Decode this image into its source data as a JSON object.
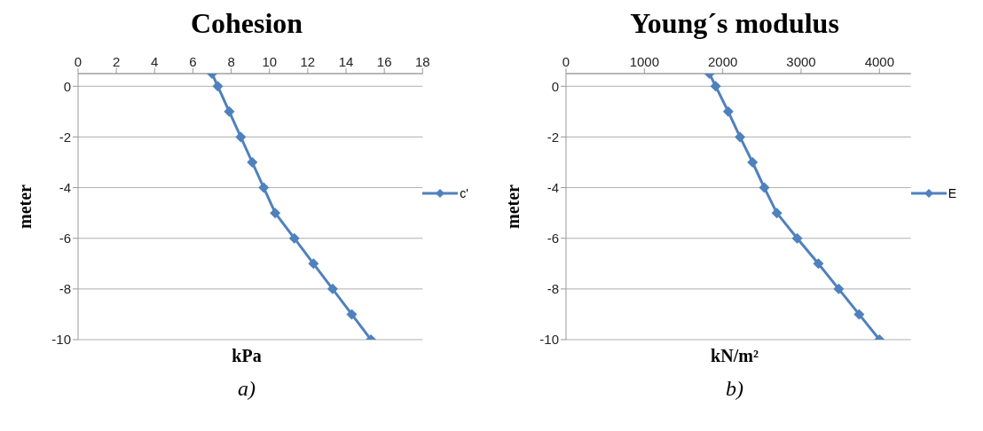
{
  "chart_data": [
    {
      "type": "line",
      "title": "Cohesion",
      "xlabel": "kPa",
      "ylabel": "meter",
      "annotations": [
        "a)"
      ],
      "x": [
        7.0,
        7.3,
        7.9,
        8.5,
        9.1,
        9.7,
        10.3,
        11.3,
        12.3,
        13.3,
        14.3,
        15.3
      ],
      "series": [
        {
          "name": "c'",
          "color": "#4f81bd",
          "values": [
            0.5,
            0,
            -1,
            -2,
            -3,
            -4,
            -5,
            -6,
            -7,
            -8,
            -9,
            -10
          ]
        }
      ],
      "xlim": [
        0,
        18
      ],
      "xticks": [
        0,
        2,
        4,
        6,
        8,
        10,
        12,
        14,
        16,
        18
      ],
      "ylim": [
        -10,
        0.5
      ],
      "yticks": [
        0,
        -2,
        -4,
        -6,
        -8,
        -10
      ],
      "grid": "y",
      "legend": "right",
      "marker": "diamond"
    },
    {
      "type": "line",
      "title": "Young´s modulus",
      "xlabel": "kN/m²",
      "ylabel": "meter",
      "annotations": [
        "b)"
      ],
      "x": [
        1830,
        1910,
        2070,
        2220,
        2380,
        2530,
        2690,
        2950,
        3220,
        3480,
        3740,
        4000
      ],
      "series": [
        {
          "name": "E",
          "color": "#4f81bd",
          "values": [
            0.5,
            0,
            -1,
            -2,
            -3,
            -4,
            -5,
            -6,
            -7,
            -8,
            -9,
            -10
          ]
        }
      ],
      "xlim": [
        0,
        4400
      ],
      "xticks": [
        0,
        1000,
        2000,
        3000,
        4000
      ],
      "ylim": [
        -10,
        0.5
      ],
      "yticks": [
        0,
        -2,
        -4,
        -6,
        -8,
        -10
      ],
      "grid": "y",
      "legend": "right",
      "marker": "diamond"
    }
  ]
}
